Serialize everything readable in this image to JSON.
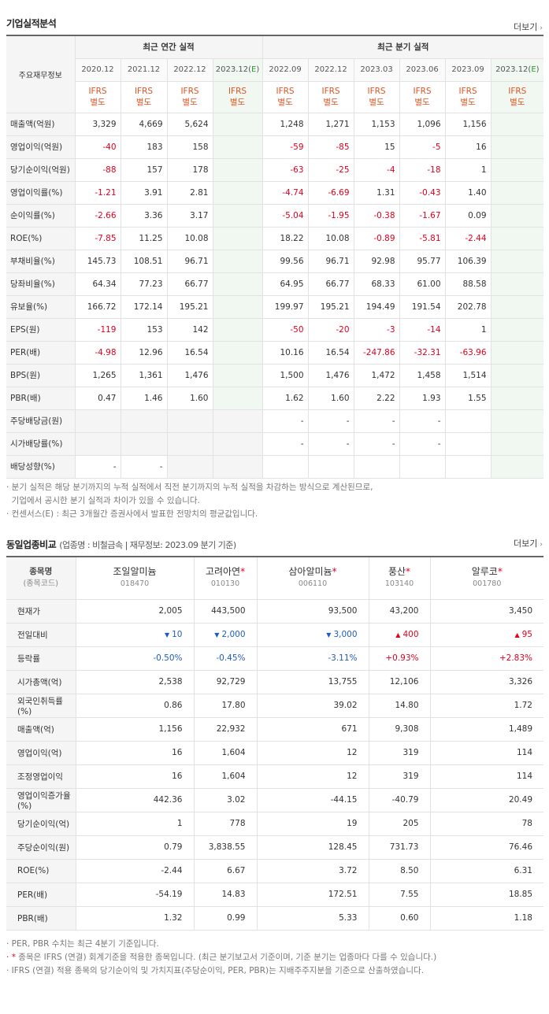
{
  "section1": {
    "title": "기업실적분석",
    "more": "더보기",
    "header_label": "주요재무정보",
    "annual_label": "최근 연간 실적",
    "quarter_label": "최근 분기 실적",
    "periods": [
      "2020.12",
      "2021.12",
      "2022.12",
      "2023.12(E)",
      "2022.09",
      "2022.12",
      "2023.03",
      "2023.06",
      "2023.09",
      "2023.12(E)"
    ],
    "ifrs_top": "IFRS",
    "ifrs_bottom": "별도",
    "rows": [
      {
        "label": "매출액(억원)",
        "values": [
          "3,329",
          "4,669",
          "5,624",
          "",
          "1,248",
          "1,271",
          "1,153",
          "1,096",
          "1,156",
          ""
        ]
      },
      {
        "label": "영업이익(억원)",
        "values": [
          "-40",
          "183",
          "158",
          "",
          "-59",
          "-85",
          "15",
          "-5",
          "16",
          ""
        ]
      },
      {
        "label": "당기순이익(억원)",
        "values": [
          "-88",
          "157",
          "178",
          "",
          "-63",
          "-25",
          "-4",
          "-18",
          "1",
          ""
        ]
      },
      {
        "label": "영업이익률(%)",
        "values": [
          "-1.21",
          "3.91",
          "2.81",
          "",
          "-4.74",
          "-6.69",
          "1.31",
          "-0.43",
          "1.40",
          ""
        ]
      },
      {
        "label": "순이익률(%)",
        "values": [
          "-2.66",
          "3.36",
          "3.17",
          "",
          "-5.04",
          "-1.95",
          "-0.38",
          "-1.67",
          "0.09",
          ""
        ]
      },
      {
        "label": "ROE(%)",
        "values": [
          "-7.85",
          "11.25",
          "10.08",
          "",
          "18.22",
          "10.08",
          "-0.89",
          "-5.81",
          "-2.44",
          ""
        ]
      },
      {
        "label": "부채비율(%)",
        "values": [
          "145.73",
          "108.51",
          "96.71",
          "",
          "99.56",
          "96.71",
          "92.98",
          "95.77",
          "106.39",
          ""
        ]
      },
      {
        "label": "당좌비율(%)",
        "values": [
          "64.34",
          "77.23",
          "66.77",
          "",
          "64.95",
          "66.77",
          "68.33",
          "61.00",
          "88.58",
          ""
        ]
      },
      {
        "label": "유보율(%)",
        "values": [
          "166.72",
          "172.14",
          "195.21",
          "",
          "199.97",
          "195.21",
          "194.49",
          "191.54",
          "202.78",
          ""
        ]
      },
      {
        "label": "EPS(원)",
        "values": [
          "-119",
          "153",
          "142",
          "",
          "-50",
          "-20",
          "-3",
          "-14",
          "1",
          ""
        ]
      },
      {
        "label": "PER(배)",
        "values": [
          "-4.98",
          "12.96",
          "16.54",
          "",
          "10.16",
          "16.54",
          "-247.86",
          "-32.31",
          "-63.96",
          ""
        ]
      },
      {
        "label": "BPS(원)",
        "values": [
          "1,265",
          "1,361",
          "1,476",
          "",
          "1,500",
          "1,476",
          "1,472",
          "1,458",
          "1,514",
          ""
        ]
      },
      {
        "label": "PBR(배)",
        "values": [
          "0.47",
          "1.46",
          "1.60",
          "",
          "1.62",
          "1.60",
          "2.22",
          "1.93",
          "1.55",
          ""
        ]
      },
      {
        "label": "주당배당금(원)",
        "values": [
          "",
          "",
          "",
          "",
          "-",
          "-",
          "-",
          "-",
          "",
          ""
        ]
      },
      {
        "label": "시가배당률(%)",
        "values": [
          "",
          "",
          "",
          "",
          "-",
          "-",
          "-",
          "-",
          "",
          ""
        ]
      },
      {
        "label": "배당성향(%)",
        "values": [
          "-",
          "-",
          "",
          "",
          "",
          "",
          "",
          "",
          "",
          ""
        ]
      }
    ],
    "notes": [
      "· 분기 실적은 해당 분기까지의 누적 실적에서 직전 분기까지의 누적 실적을 차감하는 방식으로 계산된므로,",
      "  기업에서 공시한 분기 실적과 차이가 있을 수 있습니다.",
      "· 컨센서스(E) : 최근 3개월간 증권사에서 발표한 전망치의 평균값입니다."
    ]
  },
  "section2": {
    "title": "동일업종비교",
    "subtitle": "(업종명 : 비철금속 | 재무정보: 2023.09 분기 기준)",
    "more": "더보기",
    "header_label": "종목명",
    "header_code": "(종목코드)",
    "companies": [
      {
        "name": "조일알미늄",
        "code": "018470",
        "star": false
      },
      {
        "name": "고려아연",
        "code": "010130",
        "star": true
      },
      {
        "name": "삼아알미늄",
        "code": "006110",
        "star": true
      },
      {
        "name": "풍산",
        "code": "103140",
        "star": true
      },
      {
        "name": "알루코",
        "code": "001780",
        "star": true
      }
    ],
    "star_mark": "*",
    "rows": [
      {
        "label": "현재가",
        "values": [
          "2,005",
          "443,500",
          "93,500",
          "43,200",
          "3,450"
        ]
      },
      {
        "label": "전일대비",
        "values": [
          "10",
          "2,000",
          "3,000",
          "400",
          "95"
        ],
        "dirs": [
          "down",
          "down",
          "down",
          "up",
          "up"
        ]
      },
      {
        "label": "등락률",
        "values": [
          "-0.50%",
          "-0.45%",
          "-3.11%",
          "+0.93%",
          "+2.83%"
        ],
        "dirs": [
          "down",
          "down",
          "down",
          "up",
          "up"
        ]
      },
      {
        "label": "시가총액(억)",
        "values": [
          "2,538",
          "92,729",
          "13,755",
          "12,106",
          "3,326"
        ]
      },
      {
        "label": "외국인취득률(%)",
        "values": [
          "0.86",
          "17.80",
          "39.02",
          "14.80",
          "1.72"
        ]
      },
      {
        "label": "매출액(억)",
        "values": [
          "1,156",
          "22,932",
          "671",
          "9,308",
          "1,489"
        ]
      },
      {
        "label": "영업이익(억)",
        "values": [
          "16",
          "1,604",
          "12",
          "319",
          "114"
        ]
      },
      {
        "label": "조정영업이익",
        "values": [
          "16",
          "1,604",
          "12",
          "319",
          "114"
        ]
      },
      {
        "label": "영업이익증가율(%)",
        "values": [
          "442.36",
          "3.02",
          "-44.15",
          "-40.79",
          "20.49"
        ]
      },
      {
        "label": "당기순이익(억)",
        "values": [
          "1",
          "778",
          "19",
          "205",
          "78"
        ]
      },
      {
        "label": "주당순이익(원)",
        "values": [
          "0.79",
          "3,838.55",
          "128.45",
          "731.73",
          "76.46"
        ]
      },
      {
        "label": "ROE(%)",
        "values": [
          "-2.44",
          "6.67",
          "3.72",
          "8.50",
          "6.31"
        ]
      },
      {
        "label": "PER(배)",
        "values": [
          "-54.19",
          "14.83",
          "172.51",
          "7.55",
          "18.85"
        ]
      },
      {
        "label": "PBR(배)",
        "values": [
          "1.32",
          "0.99",
          "5.33",
          "0.60",
          "1.18"
        ]
      }
    ],
    "notes": [
      "· PER, PBR 수치는 최근 4분기 기준입니다.",
      "종목은 IFRS (연결) 회계기준을 적용한 종목입니다. (최근 분기보고서 기준이며, 기준 분기는 업종마다 다를 수 있습니다.)",
      "· IFRS (연결) 적용 종목의 당기순이익 및 가치지표(주당순이익, PER, PBR)는 지배주주지분을 기준으로 산출하였습니다."
    ]
  }
}
